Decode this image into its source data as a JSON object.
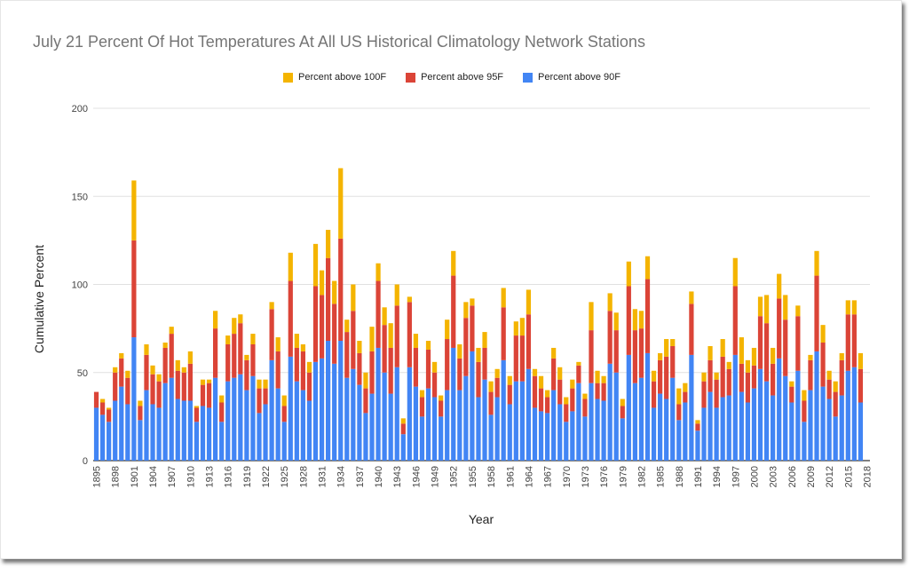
{
  "chart_data": {
    "type": "bar",
    "stacked": true,
    "title": "July 21 Percent Of Hot Temperatures At All US Historical Climatology Network Stations",
    "xlabel": "Year",
    "ylabel": "Cumulative Percent",
    "ylim": [
      0,
      200
    ],
    "yticks": [
      0,
      50,
      100,
      150,
      200
    ],
    "legend_position": "top-center",
    "xtick_labels": [
      "1895",
      "1898",
      "1901",
      "1904",
      "1907",
      "1910",
      "1913",
      "1916",
      "1919",
      "1922",
      "1925",
      "1928",
      "1931",
      "1934",
      "1937",
      "1940",
      "1943",
      "1946",
      "1949",
      "1952",
      "1955",
      "1958",
      "1961",
      "1964",
      "1967",
      "1970",
      "1973",
      "1976",
      "1979",
      "1982",
      "1985",
      "1988",
      "1991",
      "1994",
      "1997",
      "2000",
      "2003",
      "2006",
      "2009",
      "2012",
      "2015",
      "2018"
    ],
    "x_start": 1895,
    "x_end": 2018,
    "series": [
      {
        "name": "Percent above 90F",
        "color": "#4285f4",
        "values": [
          30,
          26,
          22,
          34,
          42,
          32,
          70,
          23,
          40,
          32,
          30,
          44,
          47,
          35,
          34,
          34,
          22,
          31,
          30,
          47,
          22,
          45,
          47,
          49,
          40,
          48,
          27,
          32,
          57,
          41,
          22,
          59,
          45,
          40,
          34,
          56,
          58,
          68,
          55,
          68,
          47,
          52,
          43,
          27,
          38,
          64,
          50,
          38,
          53,
          15,
          53,
          42,
          25,
          41,
          36,
          25,
          40,
          64,
          40,
          48,
          62,
          36,
          46,
          26,
          36,
          57,
          32,
          45,
          45,
          52,
          30,
          28,
          27,
          40,
          32,
          22,
          28,
          44,
          25,
          44,
          35,
          34,
          55,
          50,
          24,
          60,
          44,
          47,
          61,
          30,
          38,
          35,
          47,
          23,
          33,
          60,
          17,
          30,
          39,
          30,
          36,
          37,
          60,
          39,
          33,
          41,
          52,
          45,
          37,
          58,
          48,
          33,
          51,
          22,
          40,
          62,
          42,
          35,
          25,
          37,
          51,
          53,
          33
        ]
      },
      {
        "name": "Percent above 95F",
        "color": "#db4437",
        "values": [
          9,
          7,
          7,
          16,
          16,
          15,
          55,
          8,
          20,
          17,
          15,
          20,
          25,
          16,
          16,
          21,
          8,
          12,
          14,
          28,
          11,
          21,
          25,
          29,
          17,
          18,
          14,
          9,
          29,
          21,
          9,
          43,
          19,
          22,
          16,
          43,
          36,
          47,
          34,
          58,
          26,
          33,
          18,
          14,
          24,
          38,
          27,
          26,
          35,
          6,
          37,
          22,
          11,
          22,
          14,
          9,
          29,
          41,
          18,
          33,
          26,
          20,
          18,
          13,
          11,
          30,
          11,
          26,
          26,
          31,
          18,
          13,
          9,
          18,
          14,
          10,
          13,
          10,
          10,
          30,
          9,
          10,
          30,
          24,
          7,
          39,
          30,
          28,
          42,
          15,
          19,
          24,
          18,
          9,
          6,
          29,
          4,
          15,
          18,
          16,
          23,
          15,
          39,
          16,
          17,
          13,
          30,
          33,
          18,
          34,
          32,
          9,
          31,
          12,
          17,
          43,
          25,
          11,
          14,
          20,
          32,
          30,
          19
        ]
      },
      {
        "name": "Percent above 100F",
        "color": "#f4b400",
        "values": [
          0,
          2,
          1,
          3,
          3,
          4,
          34,
          3,
          6,
          5,
          4,
          3,
          4,
          6,
          3,
          7,
          1,
          3,
          2,
          10,
          4,
          5,
          9,
          5,
          3,
          6,
          5,
          5,
          4,
          8,
          6,
          16,
          8,
          4,
          6,
          24,
          14,
          16,
          13,
          40,
          7,
          15,
          7,
          9,
          14,
          10,
          10,
          14,
          12,
          3,
          3,
          8,
          4,
          5,
          6,
          3,
          11,
          14,
          8,
          9,
          4,
          8,
          9,
          6,
          5,
          11,
          5,
          8,
          10,
          14,
          4,
          7,
          4,
          6,
          7,
          4,
          5,
          2,
          3,
          16,
          7,
          4,
          10,
          10,
          4,
          14,
          12,
          10,
          13,
          6,
          4,
          10,
          4,
          9,
          5,
          7,
          2,
          5,
          8,
          4,
          10,
          4,
          16,
          15,
          7,
          10,
          11,
          16,
          9,
          14,
          14,
          3,
          6,
          6,
          3,
          14,
          10,
          5,
          6,
          4,
          8,
          8,
          9
        ]
      }
    ]
  }
}
